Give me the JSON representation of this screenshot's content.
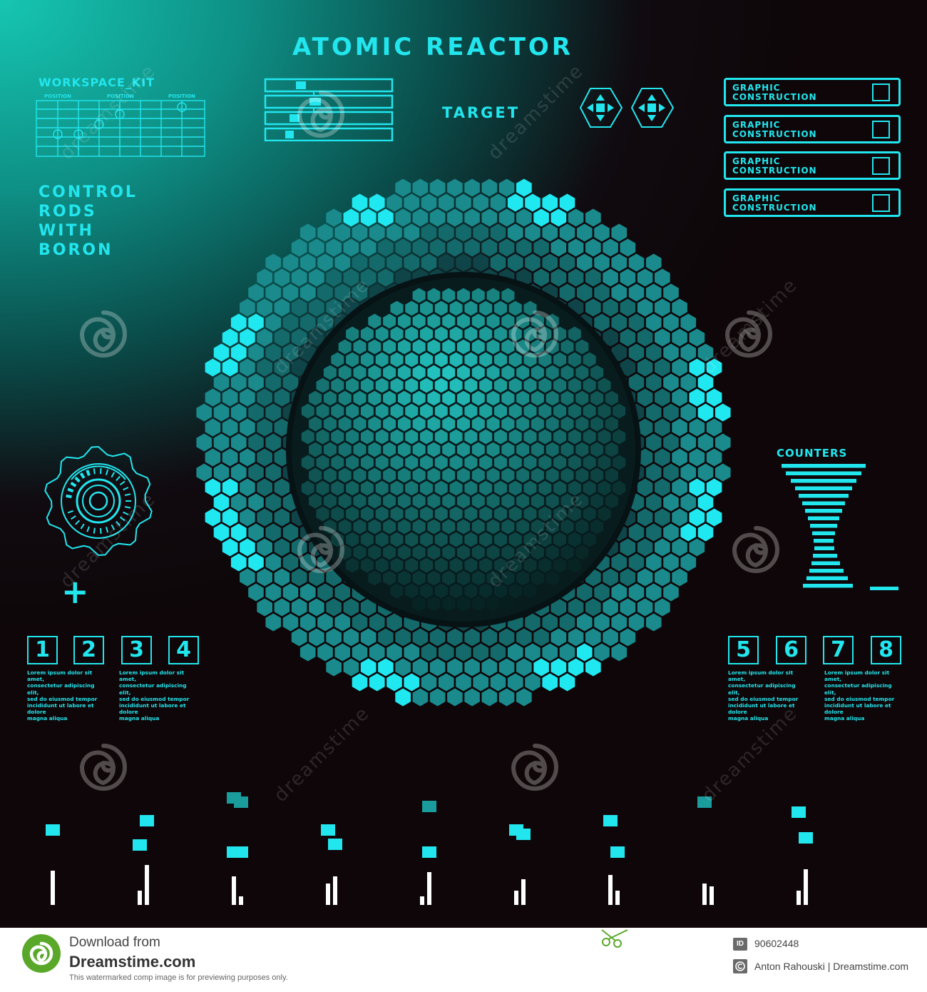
{
  "title": "ATOMIC REACTOR",
  "workspace": {
    "title": "WORKSPACE_KIT",
    "column_labels": [
      "POSITION",
      "POSITION",
      "POSITION"
    ]
  },
  "control_text": [
    "CONTROL",
    "RODS",
    "WITH",
    "BORON"
  ],
  "target_label": "TARGET",
  "graphic_buttons": [
    {
      "line1": "GRAPHIC",
      "line2": "CONSTRUCTION"
    },
    {
      "line1": "GRAPHIC",
      "line2": "CONSTRUCTION"
    },
    {
      "line1": "GRAPHIC",
      "line2": "CONSTRUCTION"
    },
    {
      "line1": "GRAPHIC",
      "line2": "CONSTRUCTION"
    }
  ],
  "counters_label": "COUNTERS",
  "plus_symbol": "+",
  "minus_symbol": "—",
  "numbered_items": [
    {
      "number": "1",
      "lines": [
        "Lorem ipsum dolor sit amet,",
        "consectetur adipiscing elit,",
        "sed do eiusmod tempor",
        "incididunt ut labore et dolore",
        "magna aliqua"
      ]
    },
    {
      "number": "2",
      "lines": [
        "Lorem ipsum dolor sit amet,",
        "consectetur adipiscing elit,",
        "sed do eiusmod tempor",
        "incididunt ut labore et dolore",
        "magna aliqua"
      ]
    },
    {
      "number": "3",
      "lines": []
    },
    {
      "number": "4",
      "lines": []
    },
    {
      "number": "5",
      "lines": [
        "Lorem ipsum dolor sit amet,",
        "consectetur adipiscing elit,",
        "sed do eiusmod tempor",
        "incididunt ut labore et dolore",
        "magna aliqua"
      ]
    },
    {
      "number": "6",
      "lines": []
    },
    {
      "number": "7",
      "lines": [
        "Lorem ipsum dolor sit amet,",
        "consectetur adipiscing elit,",
        "sed do eiusmod tempor",
        "incididunt ut labore et dolore",
        "magna aliqua"
      ]
    },
    {
      "number": "8",
      "lines": []
    }
  ],
  "watermark_text": "dreamstime",
  "footer": {
    "download_from": "Download from",
    "site": "Dreamstime.com",
    "notice": "This watermarked comp image is for previewing purposes only.",
    "id_badge": "ID",
    "id_number": "90602448",
    "author": "Anton Rahouski | Dreamstime.com"
  },
  "colors": {
    "accent": "#22e6ee",
    "hex_bright": "#20e8f0",
    "hex_mid": "#1a8a8c",
    "hex_dark": "#0f4448",
    "bar_white": "#ffffff"
  }
}
